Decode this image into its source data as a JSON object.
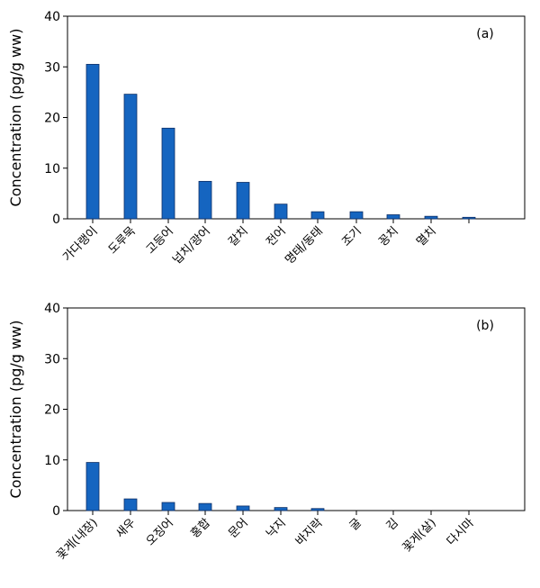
{
  "chart_data": [
    {
      "type": "bar",
      "panel_label": "(a)",
      "ylabel": "Concentration (pg/g ww)",
      "ylim": [
        0,
        40
      ],
      "yticks": [
        0,
        10,
        20,
        30,
        40
      ],
      "bar_color": "#1565c0",
      "grid": false,
      "categories": [
        "가다랭이",
        "도루묵",
        "고등어",
        "넙치/광어",
        "갈치",
        "전어",
        "명태/동태",
        "조기",
        "꽁치",
        "멸치",
        ""
      ],
      "values": [
        30.5,
        24.6,
        17.9,
        7.4,
        7.2,
        2.9,
        1.4,
        1.4,
        0.8,
        0.5,
        0.3
      ]
    },
    {
      "type": "bar",
      "panel_label": "(b)",
      "ylabel": "Concentration (pg/g ww)",
      "ylim": [
        0,
        40
      ],
      "yticks": [
        0,
        10,
        20,
        30,
        40
      ],
      "bar_color": "#1565c0",
      "grid": false,
      "categories": [
        "꽃게(내장)",
        "새우",
        "오징어",
        "홍합",
        "문어",
        "낙지",
        "바지락",
        "굴",
        "김",
        "꽃게(살)",
        "다시마"
      ],
      "values": [
        9.5,
        2.3,
        1.6,
        1.4,
        0.9,
        0.6,
        0.4,
        0,
        0,
        0,
        0
      ]
    }
  ]
}
